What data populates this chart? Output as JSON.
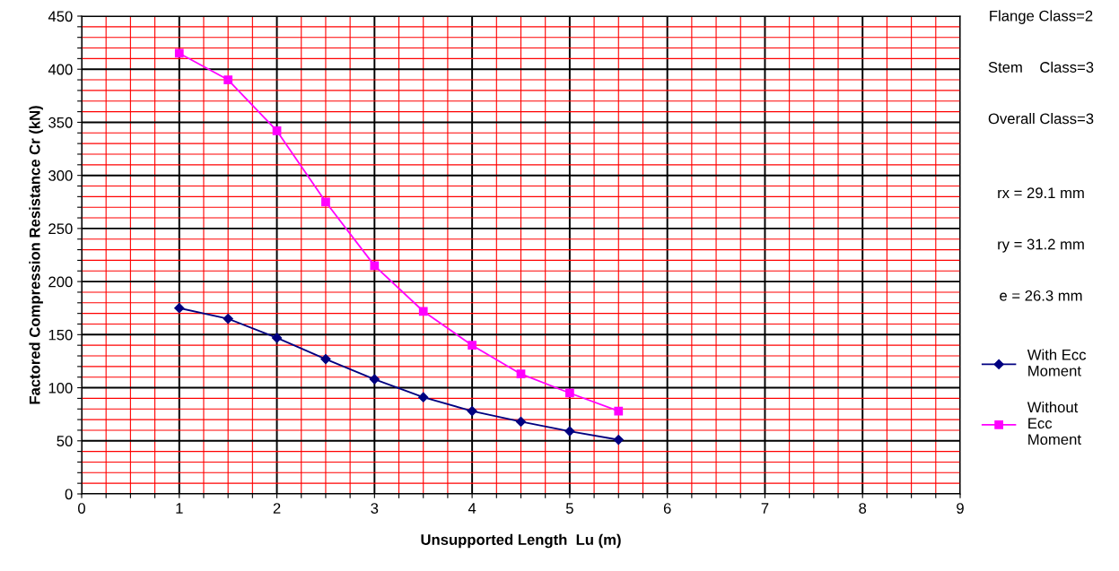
{
  "chart_data": {
    "type": "line",
    "xlabel": "Unsupported Length  Lu (m)",
    "ylabel": "Factored Compression Resistance Cr (kN)",
    "x": [
      1,
      1.5,
      2,
      2.5,
      3,
      3.5,
      4,
      4.5,
      5,
      5.5
    ],
    "series": [
      {
        "name": "With Ecc Moment",
        "color": "#000080",
        "marker": "diamond",
        "values": [
          175,
          165,
          147,
          127,
          108,
          91,
          78,
          68,
          59,
          51
        ]
      },
      {
        "name": "Without Ecc Moment",
        "color": "#ff00ff",
        "marker": "square",
        "values": [
          415,
          390,
          342,
          275,
          215,
          172,
          140,
          113,
          95,
          78
        ]
      }
    ],
    "xlim": [
      0,
      9
    ],
    "xticks": [
      0,
      {
        "value": 0.25,
        "label": null
      },
      {
        "value": 0.5,
        "label": null
      },
      {
        "value": 0.75,
        "label": null
      },
      1,
      {
        "value": 1.25,
        "label": null
      },
      {
        "value": 1.5,
        "label": null
      },
      {
        "value": 1.75,
        "label": null
      },
      2,
      {
        "value": 2.25,
        "label": null
      },
      {
        "value": 2.5,
        "label": null
      },
      {
        "value": 2.75,
        "label": null
      },
      3,
      {
        "value": 3.25,
        "label": null
      },
      {
        "value": 3.5,
        "label": null
      },
      {
        "value": 3.75,
        "label": null
      },
      4,
      {
        "value": 4.25,
        "label": null
      },
      {
        "value": 4.5,
        "label": null
      },
      {
        "value": 4.75,
        "label": null
      },
      5,
      {
        "value": 5.25,
        "label": null
      },
      {
        "value": 5.5,
        "label": null
      },
      {
        "value": 5.75,
        "label": null
      },
      6,
      {
        "value": 6.25,
        "label": null
      },
      {
        "value": 6.5,
        "label": null
      },
      {
        "value": 6.75,
        "label": null
      },
      7,
      {
        "value": 7.25,
        "label": null
      },
      {
        "value": 7.5,
        "label": null
      },
      {
        "value": 7.75,
        "label": null
      },
      8,
      {
        "value": 8.25,
        "label": null
      },
      {
        "value": 8.5,
        "label": null
      },
      {
        "value": 8.75,
        "label": null
      },
      9
    ],
    "ylim": [
      0,
      450
    ],
    "yticks": [
      0,
      {
        "value": 10,
        "label": null
      },
      {
        "value": 20,
        "label": null
      },
      {
        "value": 30,
        "label": null
      },
      {
        "value": 40,
        "label": null
      },
      50,
      {
        "value": 60,
        "label": null
      },
      {
        "value": 70,
        "label": null
      },
      {
        "value": 80,
        "label": null
      },
      {
        "value": 90,
        "label": null
      },
      100,
      {
        "value": 110,
        "label": null
      },
      {
        "value": 120,
        "label": null
      },
      {
        "value": 130,
        "label": null
      },
      {
        "value": 140,
        "label": null
      },
      150,
      {
        "value": 160,
        "label": null
      },
      {
        "value": 170,
        "label": null
      },
      {
        "value": 180,
        "label": null
      },
      {
        "value": 190,
        "label": null
      },
      200,
      {
        "value": 210,
        "label": null
      },
      {
        "value": 220,
        "label": null
      },
      {
        "value": 230,
        "label": null
      },
      {
        "value": 240,
        "label": null
      },
      250,
      {
        "value": 260,
        "label": null
      },
      {
        "value": 270,
        "label": null
      },
      {
        "value": 280,
        "label": null
      },
      {
        "value": 290,
        "label": null
      },
      300,
      {
        "value": 310,
        "label": null
      },
      {
        "value": 320,
        "label": null
      },
      {
        "value": 330,
        "label": null
      },
      {
        "value": 340,
        "label": null
      },
      350,
      {
        "value": 360,
        "label": null
      },
      {
        "value": 370,
        "label": null
      },
      {
        "value": 380,
        "label": null
      },
      {
        "value": 390,
        "label": null
      },
      400,
      {
        "value": 410,
        "label": null
      },
      {
        "value": 420,
        "label": null
      },
      {
        "value": 430,
        "label": null
      },
      {
        "value": 440,
        "label": null
      },
      450
    ],
    "grid": true,
    "legend": "right",
    "line_style": "solid",
    "annotations": [
      "Flange Class=2",
      "Stem    Class=3",
      "Overall Class=3",
      "rx = 29.1 mm",
      "ry = 31.2 mm",
      "e = 26.3 mm"
    ]
  }
}
